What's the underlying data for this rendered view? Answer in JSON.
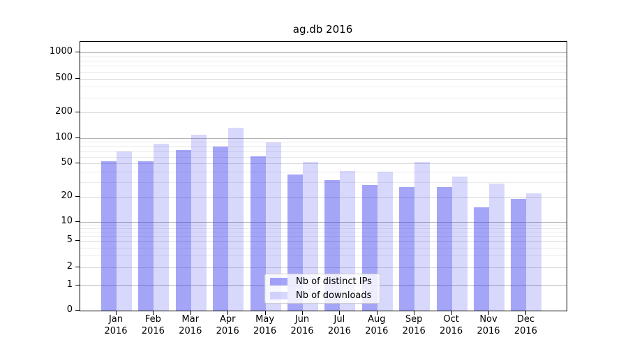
{
  "chart_data": {
    "type": "bar",
    "title": "ag.db 2016",
    "categories": [
      "Jan",
      "Feb",
      "Mar",
      "Apr",
      "May",
      "Jun",
      "Jul",
      "Aug",
      "Sep",
      "Oct",
      "Nov",
      "Dec"
    ],
    "category_year": "2016",
    "series": [
      {
        "name": "Nb of distinct IPs",
        "color": "rgba(40,40,238,0.42)",
        "values": [
          53,
          53,
          72,
          79,
          61,
          37,
          32,
          28,
          26,
          26,
          15,
          19
        ]
      },
      {
        "name": "Nb of downloads",
        "color": "rgba(40,40,238,0.18)",
        "values": [
          70,
          85,
          110,
          133,
          88,
          52,
          41,
          40,
          52,
          35,
          29,
          22
        ]
      }
    ],
    "y_axis": {
      "scale": "symlog",
      "tick_values": [
        0,
        1,
        2,
        5,
        10,
        20,
        50,
        100,
        200,
        500,
        1000
      ],
      "tick_labels": [
        "0",
        "1",
        "2",
        "5",
        "10",
        "20",
        "50",
        "100",
        "200",
        "500",
        "1000"
      ],
      "ylim": [
        0,
        1300
      ]
    },
    "x_axis": {
      "tick_labels_line2": "2016"
    },
    "legend": {
      "position": "lower-center"
    },
    "grid": true,
    "colors": {
      "major_grid": "#b3b3b3",
      "mid_grid": "#d8d8d8",
      "minor_grid": "#ebebeb",
      "axis": "#000000",
      "background": "#ffffff"
    }
  }
}
